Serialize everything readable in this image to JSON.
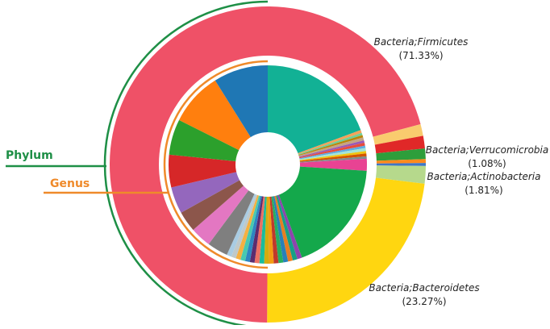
{
  "chart_data": {
    "type": "pie",
    "title": "",
    "rings": {
      "outer": {
        "name": "Phylum",
        "color": "#1e8f46",
        "slices": [
          {
            "label": "Bacteria;Firmicutes",
            "percent": "(71.33%)",
            "value": 71.33,
            "color": "#ef5167"
          },
          {
            "label": "",
            "value": 1.2,
            "color": "#f9cb6e"
          },
          {
            "label": "",
            "value": 1.3,
            "color": "#e02828"
          },
          {
            "label": "Bacteria;Verrucomicrobia",
            "percent": "(1.08%)",
            "value": 1.08,
            "color": "#2e9e3b"
          },
          {
            "label": "",
            "value": 0.4,
            "color": "#ff8a1c"
          },
          {
            "label": "",
            "value": 0.3,
            "color": "#3f76c6"
          },
          {
            "label": "Bacteria;Actinobacteria",
            "percent": "(1.81%)",
            "value": 1.81,
            "color": "#b6d98c"
          },
          {
            "label": "Bacteria;Bacteroidetes",
            "percent": "(23.27%)",
            "value": 23.27,
            "color": "#ffd610"
          }
        ]
      },
      "inner": {
        "name": "Genus",
        "color": "#ef8a2a",
        "slices": [
          {
            "value": 20.0,
            "color": "#12b195"
          },
          {
            "value": 0.5,
            "color": "#f4a259"
          },
          {
            "value": 0.4,
            "color": "#6fcf97"
          },
          {
            "value": 0.4,
            "color": "#b8860b"
          },
          {
            "value": 0.5,
            "color": "#c4a484"
          },
          {
            "value": 0.4,
            "color": "#9b59b6"
          },
          {
            "value": 0.5,
            "color": "#e74c3c"
          },
          {
            "value": 0.4,
            "color": "#5dade2"
          },
          {
            "value": 0.5,
            "color": "#a3e4d7"
          },
          {
            "value": 0.4,
            "color": "#f1c40f"
          },
          {
            "value": 0.5,
            "color": "#d35400"
          },
          {
            "value": 0.4,
            "color": "#7f8c8d"
          },
          {
            "value": 2.0,
            "color": "#e84393"
          },
          {
            "value": 19.0,
            "color": "#14a84b"
          },
          {
            "value": 0.8,
            "color": "#8e44ad"
          },
          {
            "value": 0.8,
            "color": "#16a085"
          },
          {
            "value": 0.8,
            "color": "#e67e22"
          },
          {
            "value": 0.8,
            "color": "#2980b9"
          },
          {
            "value": 0.8,
            "color": "#27ae60"
          },
          {
            "value": 0.8,
            "color": "#c0392b"
          },
          {
            "value": 0.8,
            "color": "#f39c12"
          },
          {
            "value": 0.8,
            "color": "#d4ac0d"
          },
          {
            "value": 0.8,
            "color": "#1abc9c"
          },
          {
            "value": 0.8,
            "color": "#ec7063"
          },
          {
            "value": 0.8,
            "color": "#5b2c6f"
          },
          {
            "value": 0.8,
            "color": "#2e86c1"
          },
          {
            "value": 0.8,
            "color": "#48c9b0"
          },
          {
            "value": 0.8,
            "color": "#f5b041"
          },
          {
            "value": 0.8,
            "color": "#bfc9ca"
          },
          {
            "value": 0.8,
            "color": "#a9cce3"
          },
          {
            "value": 3.5,
            "color": "#7f7f7f"
          },
          {
            "value": 3.5,
            "color": "#e377c2"
          },
          {
            "value": 3.5,
            "color": "#8c564b"
          },
          {
            "value": 4.5,
            "color": "#9467bd"
          },
          {
            "value": 5.5,
            "color": "#d62728"
          },
          {
            "value": 6.0,
            "color": "#2ca02c"
          },
          {
            "value": 9.0,
            "color": "#ff7f0e"
          },
          {
            "value": 9.2,
            "color": "#1f77b4"
          }
        ]
      }
    }
  }
}
